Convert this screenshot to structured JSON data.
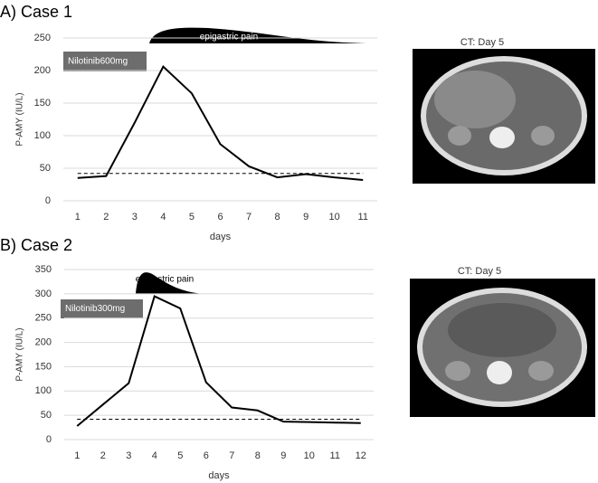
{
  "chart_data": [
    {
      "type": "line",
      "title": "A) Case 1",
      "ylabel": "P-AMY (IU/L)",
      "xlabel": "days",
      "categories": [
        "1",
        "2",
        "3",
        "4",
        "5",
        "6",
        "7",
        "8",
        "9",
        "10",
        "11"
      ],
      "values": [
        35,
        38,
        120,
        206,
        165,
        87,
        53,
        36,
        41,
        36,
        32
      ],
      "color": "#000000",
      "ylim": [
        0,
        250
      ],
      "yticks": [
        0,
        50,
        100,
        150,
        200,
        250
      ],
      "grid": true,
      "reference_line": 42,
      "drug_label": "Nilotinib600mg",
      "symptom_label": "epigastric pain",
      "image_caption": "CT: Day 5"
    },
    {
      "type": "line",
      "title": "B) Case 2",
      "ylabel": "P-AMY (IU/L)",
      "xlabel": "days",
      "categories": [
        "1",
        "2",
        "3",
        "4",
        "5",
        "6",
        "7",
        "8",
        "9",
        "10",
        "11",
        "12"
      ],
      "values": [
        28,
        72,
        116,
        295,
        270,
        118,
        66,
        60,
        37,
        36,
        35,
        34
      ],
      "color": "#000000",
      "ylim": [
        0,
        350
      ],
      "yticks": [
        0,
        50,
        100,
        150,
        200,
        250,
        300,
        350
      ],
      "grid": true,
      "reference_line": 42,
      "drug_label": "Nilotinib300mg",
      "symptom_label": "epigastric pain",
      "image_caption": "CT: Day 5"
    }
  ]
}
